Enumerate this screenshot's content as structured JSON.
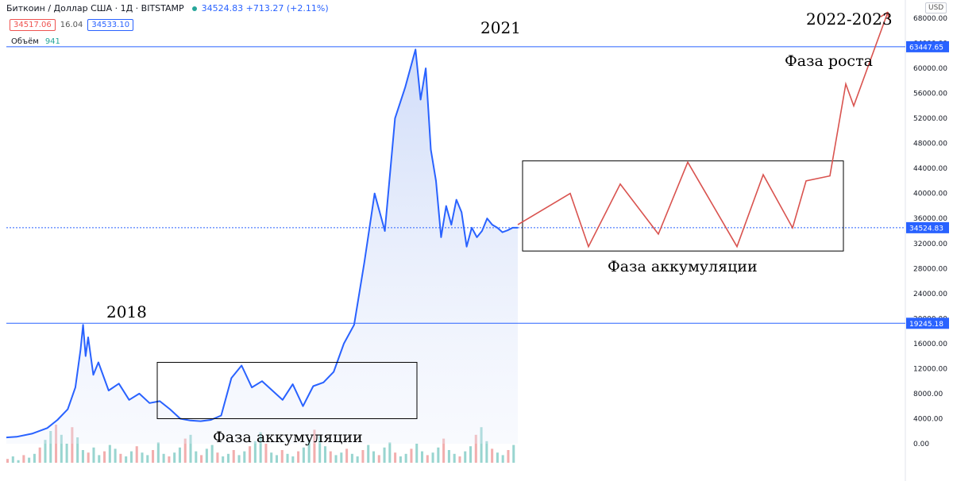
{
  "header": {
    "symbol": "Биткоин / Доллар США · 1Д · BITSTAMP",
    "price": "34524.83",
    "change": "+713.27 (+2.11%)"
  },
  "ohlc": {
    "bid": "34517.06",
    "spread": "16.04",
    "ask": "34533.10"
  },
  "volume": {
    "label": "Объём",
    "value": "941"
  },
  "currency": "USD",
  "annotations": {
    "y2018": "2018",
    "y2021": "2021",
    "forecast": "2022-2023",
    "growth": "Фаза роста",
    "accum1": "Фаза аккумуляции",
    "accum2": "Фаза аккумуляции"
  },
  "chart_data": {
    "type": "line",
    "title": "",
    "xlabel": "",
    "ylabel": "",
    "ylim": [
      -2000,
      70000
    ],
    "y_ticks": [
      0,
      4000,
      8000,
      12000,
      16000,
      20000,
      24000,
      28000,
      32000,
      36000,
      40000,
      44000,
      48000,
      52000,
      56000,
      60000,
      64000,
      68000
    ],
    "y_tick_labels": [
      "0.00",
      "4000.00",
      "8000.00",
      "12000.00",
      "16000.00",
      "20000.00",
      "24000.00",
      "28000.00",
      "32000.00",
      "36000.00",
      "40000.00",
      "44000.00",
      "48000.00",
      "52000.00",
      "56000.00",
      "60000.00",
      "64000.00",
      "68000.00"
    ],
    "price_markers": [
      {
        "value": 63447.65,
        "label": "63447.65",
        "style": "solid"
      },
      {
        "value": 34524.83,
        "label": "34524.83",
        "style": "dotted"
      },
      {
        "value": 19245.18,
        "label": "19245.18",
        "style": "solid"
      }
    ],
    "series": [
      {
        "role": "price",
        "x": [
          0,
          0.02,
          0.05,
          0.08,
          0.1,
          0.12,
          0.135,
          0.145,
          0.15,
          0.155,
          0.16,
          0.17,
          0.18,
          0.2,
          0.22,
          0.24,
          0.26,
          0.28,
          0.3,
          0.32,
          0.34,
          0.36,
          0.38,
          0.4,
          0.42,
          0.44,
          0.46,
          0.48,
          0.5,
          0.52,
          0.54,
          0.56,
          0.58,
          0.6,
          0.62,
          0.64,
          0.66,
          0.68,
          0.7,
          0.72,
          0.74,
          0.76,
          0.78,
          0.8,
          0.81,
          0.82,
          0.83,
          0.84,
          0.85,
          0.86,
          0.87,
          0.88,
          0.89,
          0.9,
          0.91,
          0.92,
          0.93,
          0.94,
          0.95,
          0.96,
          0.97,
          0.98,
          0.99,
          1.0
        ],
        "values": [
          1000,
          1100,
          1600,
          2500,
          3800,
          5500,
          9000,
          15000,
          19000,
          14000,
          17000,
          11000,
          13000,
          8500,
          9600,
          7000,
          8000,
          6500,
          6800,
          5500,
          4000,
          3700,
          3600,
          3800,
          4500,
          10500,
          12500,
          9000,
          10000,
          8500,
          7000,
          9500,
          6000,
          9200,
          9800,
          11500,
          16000,
          19000,
          29000,
          40000,
          34000,
          52000,
          57000,
          63000,
          55000,
          60000,
          47000,
          42000,
          33000,
          38000,
          35000,
          39000,
          37000,
          31500,
          34524.83,
          33000,
          34000,
          36000,
          35000,
          34524.83,
          33800,
          34100,
          34524.83,
          34524.83
        ]
      }
    ],
    "volume_bars": [
      3,
      5,
      2,
      6,
      4,
      7,
      12,
      18,
      25,
      30,
      22,
      15,
      28,
      20,
      10,
      8,
      12,
      6,
      9,
      14,
      11,
      7,
      5,
      9,
      13,
      8,
      6,
      10,
      16,
      7,
      5,
      8,
      12,
      19,
      22,
      9,
      6,
      11,
      14,
      8,
      5,
      7,
      10,
      6,
      9,
      13,
      17,
      24,
      15,
      8,
      6,
      10,
      7,
      5,
      9,
      12,
      18,
      26,
      21,
      13,
      9,
      6,
      8,
      11,
      7,
      5,
      10,
      14,
      9,
      6,
      12,
      16,
      8,
      5,
      7,
      11,
      15,
      9,
      6,
      8,
      12,
      19,
      10,
      7,
      5,
      9,
      13,
      22,
      28,
      17,
      11,
      8,
      6,
      10,
      14
    ],
    "forecast_path": [
      35000,
      40000,
      31500,
      41500,
      33500,
      45000,
      31500,
      43000,
      34500,
      42000,
      42800,
      57500,
      54000,
      69000
    ],
    "accumulation_box_2019": {
      "y_range": [
        4000,
        13000
      ]
    },
    "accumulation_box_2022": {
      "y_range": [
        30800,
        45200
      ]
    }
  }
}
